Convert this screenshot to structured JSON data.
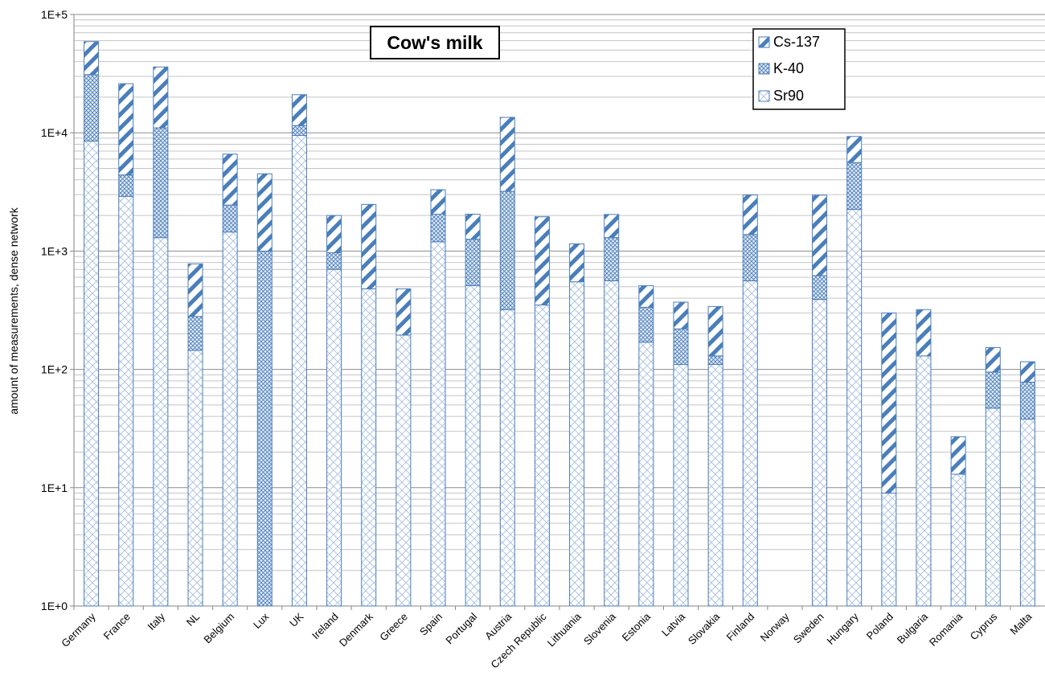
{
  "chart_data": {
    "type": "bar",
    "stacked": true,
    "log_scale": true,
    "title": "Cow's milk",
    "xlabel": "",
    "ylabel": "amount of measurements, dense network",
    "ylim": [
      1,
      100000
    ],
    "y_ticks": [
      "1E+0",
      "1E+1",
      "1E+2",
      "1E+3",
      "1E+4",
      "1E+5"
    ],
    "grid": "horizontal major and minor",
    "legend_position": "top-right",
    "colors": {
      "bar": "#4a7ebb",
      "fill": "#dbe5f5",
      "grid": "#a6a6a6",
      "axis": "#868686"
    },
    "categories": [
      "Germany",
      "France",
      "Italy",
      "NL",
      "Belgium",
      "Lux",
      "UK",
      "Ireland",
      "Denmark",
      "Greece",
      "Spain",
      "Portugal",
      "Austria",
      "Czech Republic",
      "Lithuania",
      "Slovenia",
      "Estonia",
      "Latvia",
      "Slovakia",
      "Finland",
      "Norway",
      "Sweden",
      "Hungary",
      "Poland",
      "Bulgaria",
      "Romania",
      "Cyprus",
      "Malta"
    ],
    "series": [
      {
        "name": "Sr90",
        "pattern": "diagonal-cross",
        "values": [
          8500,
          2900,
          1300,
          145,
          1450,
          1,
          9500,
          700,
          480,
          195,
          1200,
          510,
          320,
          350,
          550,
          560,
          170,
          110,
          110,
          560,
          0,
          390,
          2250,
          9,
          130,
          13,
          47,
          38
        ]
      },
      {
        "name": "K-40",
        "pattern": "dense-cross",
        "values": [
          22500,
          1500,
          9700,
          135,
          1000,
          999,
          2000,
          270,
          0,
          0,
          850,
          750,
          2880,
          0,
          0,
          740,
          165,
          110,
          20,
          820,
          0,
          230,
          3350,
          0,
          0,
          0,
          48,
          40
        ]
      },
      {
        "name": "Cs-137",
        "pattern": "wide-diagonal",
        "values": [
          28000,
          21600,
          25000,
          500,
          4150,
          3500,
          9500,
          1030,
          2000,
          285,
          1250,
          790,
          10300,
          1600,
          600,
          740,
          175,
          150,
          210,
          1600,
          0,
          2350,
          3700,
          291,
          190,
          14,
          58,
          38
        ]
      }
    ]
  }
}
